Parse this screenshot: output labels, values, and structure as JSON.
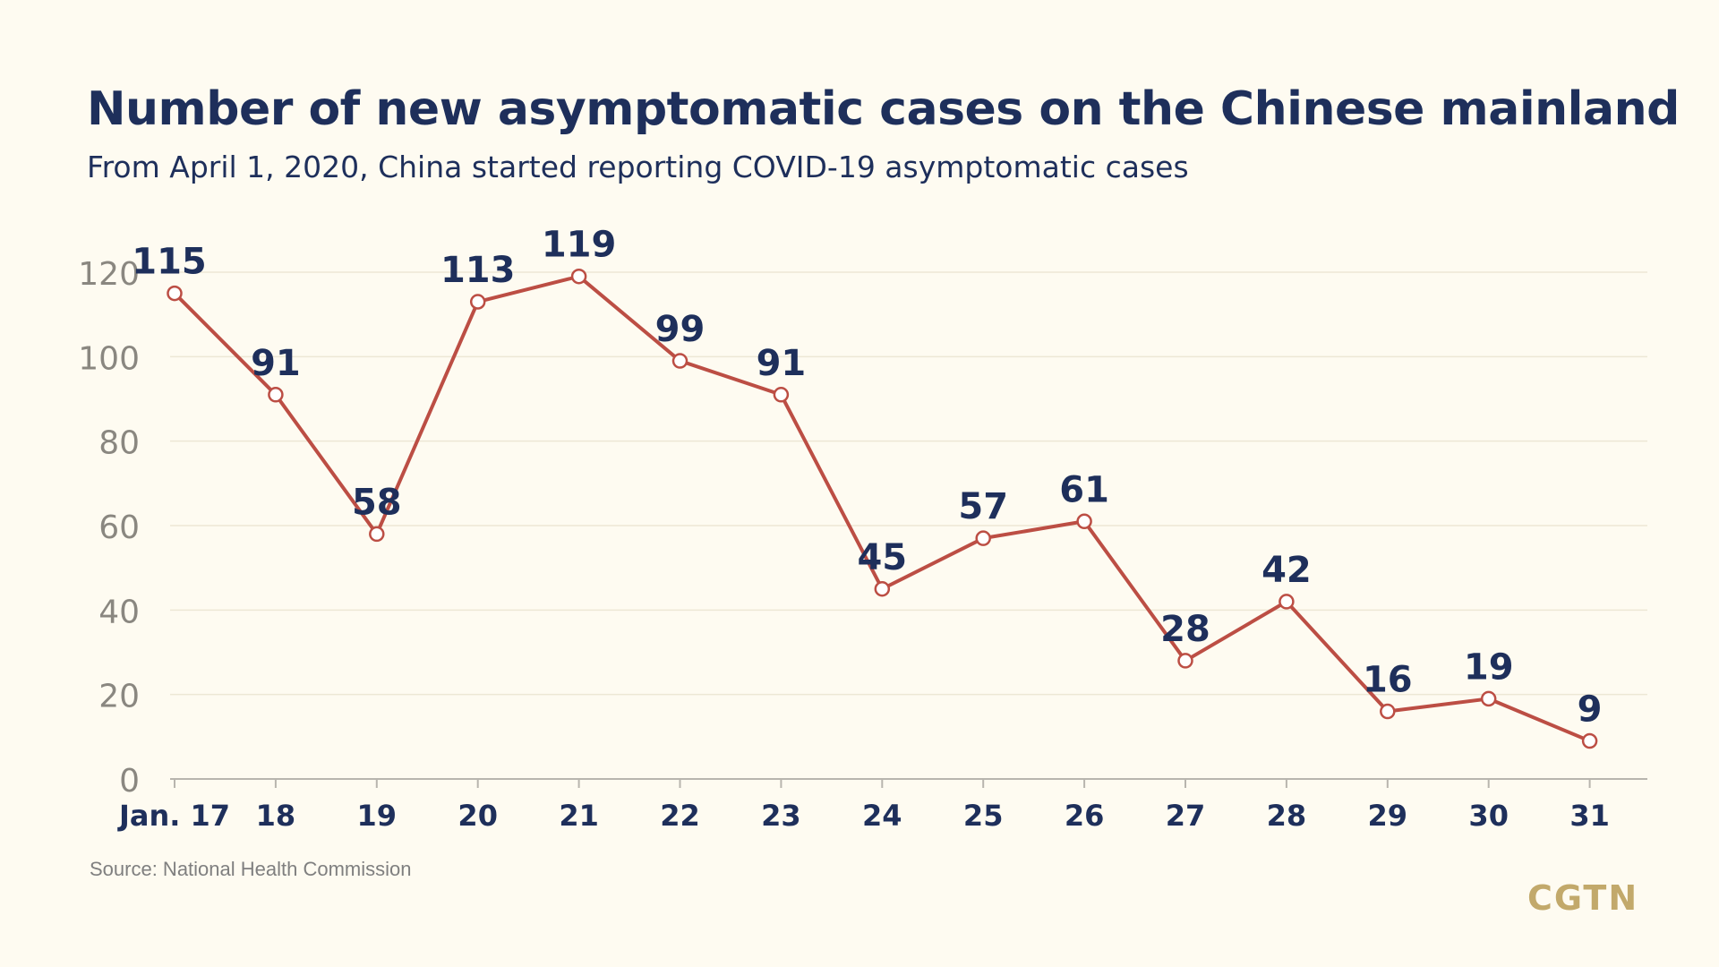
{
  "header": {
    "title": "Number of new asymptomatic cases on the Chinese mainland",
    "subtitle": "From April 1, 2020, China started reporting COVID-19 asymptomatic cases"
  },
  "footer": {
    "source": "Source: National Health Commission",
    "logo": "CGTN"
  },
  "colors": {
    "background": "#FEFBF1",
    "title": "#1E2F5B",
    "line": "#BC4E44",
    "gridline": "#EDE7D5",
    "axis": "#B8B5AE",
    "ytick": "#8A8780",
    "logo": "#C2A96B"
  },
  "chart_data": {
    "type": "line",
    "categories": [
      "Jan. 17",
      "18",
      "19",
      "20",
      "21",
      "22",
      "23",
      "24",
      "25",
      "26",
      "27",
      "28",
      "29",
      "30",
      "31"
    ],
    "values": [
      115,
      91,
      58,
      113,
      119,
      99,
      91,
      45,
      57,
      61,
      28,
      42,
      16,
      19,
      9
    ],
    "ylim": [
      0,
      120
    ],
    "yticks": [
      0,
      20,
      40,
      60,
      80,
      100,
      120
    ],
    "grid": true,
    "legend": "none",
    "data_labels": true
  }
}
